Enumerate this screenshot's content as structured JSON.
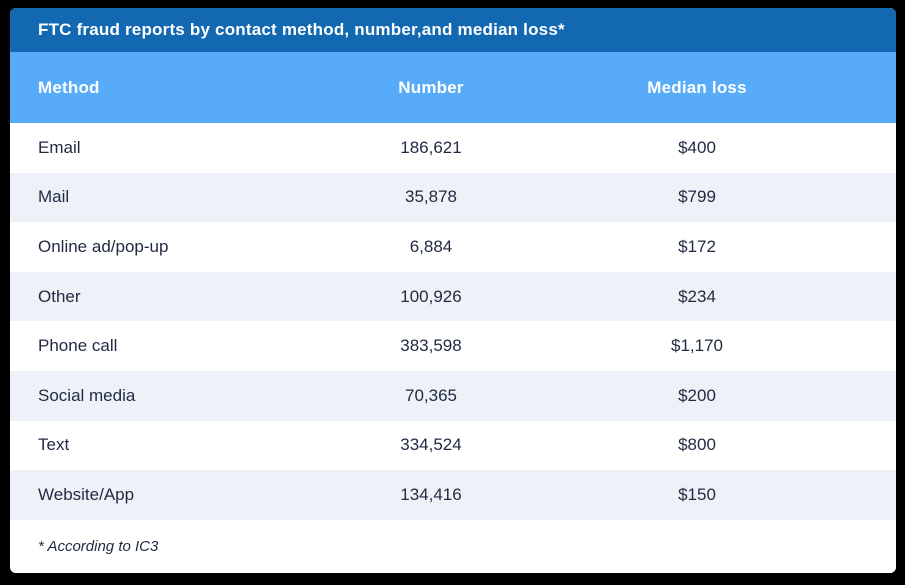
{
  "title_bar": {
    "title": "FTC fraud reports by contact method, number,and median loss*",
    "background": "#1269b1"
  },
  "table": {
    "header": {
      "background": "#57abf8",
      "method_label": "Method",
      "number_label": "Number",
      "median_loss_label": "Median loss"
    },
    "alt_row_background": "#eef2f8",
    "rows": [
      {
        "method": "Email",
        "number": "186,621",
        "median_loss": "$400"
      },
      {
        "method": "Mail",
        "number": "35,878",
        "median_loss": "$799"
      },
      {
        "method": "Online ad/pop-up",
        "number": "6,884",
        "median_loss": "$172"
      },
      {
        "method": "Other",
        "number": "100,926",
        "median_loss": "$234"
      },
      {
        "method": "Phone call",
        "number": "383,598",
        "median_loss": "$1,170"
      },
      {
        "method": "Social media",
        "number": "70,365",
        "median_loss": "$200"
      },
      {
        "method": "Text",
        "number": "334,524",
        "median_loss": "$800"
      },
      {
        "method": "Website/App",
        "number": "134,416",
        "median_loss": "$150"
      }
    ]
  },
  "footnote": {
    "text": "* According to IC3"
  },
  "chart_data": {
    "type": "table",
    "title": "FTC fraud reports by contact method, number,and median loss*",
    "columns": [
      "Method",
      "Number",
      "Median loss"
    ],
    "rows": [
      [
        "Email",
        186621,
        400
      ],
      [
        "Mail",
        35878,
        799
      ],
      [
        "Online ad/pop-up",
        6884,
        172
      ],
      [
        "Other",
        100926,
        234
      ],
      [
        "Phone call",
        383598,
        1170
      ],
      [
        "Social media",
        70365,
        200
      ],
      [
        "Text",
        334524,
        800
      ],
      [
        "Website/App",
        134416,
        150
      ]
    ],
    "footnote": "* According to IC3",
    "layout": {
      "header_background": "#57abf8",
      "title_background": "#1269b1",
      "alt_row_background": "#eef2f8",
      "text_color": "#1f2a40"
    }
  }
}
